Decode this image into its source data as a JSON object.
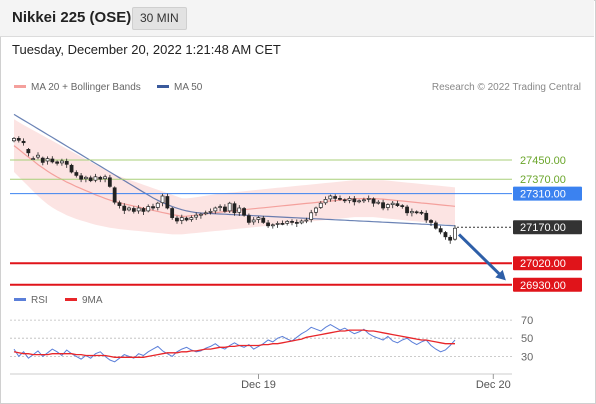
{
  "header": {
    "title": "Nikkei 225 (OSE)",
    "interval": "30 MIN"
  },
  "timestamp": "Tuesday, December 20, 2022 1:21:48 AM CET",
  "legend": {
    "items": [
      {
        "label": "MA 20 + Bollinger Bands",
        "color": "#f4a09c"
      },
      {
        "label": "MA 50",
        "color": "#3a5a9c"
      }
    ],
    "credit": "Research © 2022 Trading Central"
  },
  "rsi_legend": {
    "items": [
      {
        "label": "RSI",
        "color": "#5b7fd9"
      },
      {
        "label": "9MA",
        "color": "#e8262a"
      }
    ]
  },
  "chart_data": [
    {
      "type": "candlestick",
      "yrange": [
        26900,
        27700
      ],
      "x_ticks": [
        {
          "label": "Dec 19",
          "index": 51
        },
        {
          "label": "Dec 20",
          "index": 100
        }
      ],
      "price_levels": [
        {
          "value": 27450,
          "label": "27450.00",
          "color": "#a8cf78",
          "style": "line",
          "label_style": "text"
        },
        {
          "value": 27370,
          "label": "27370.00",
          "color": "#a8cf78",
          "style": "line",
          "label_style": "text"
        },
        {
          "value": 27310,
          "label": "27310.00",
          "color": "#3b82f0",
          "style": "line",
          "label_style": "box"
        },
        {
          "value": 27170,
          "label": "27170.00",
          "color": "#333333",
          "style": "dotted",
          "label_style": "box"
        },
        {
          "value": 27020,
          "label": "27020.00",
          "color": "#e0141a",
          "style": "thick",
          "label_style": "box"
        },
        {
          "value": 26930,
          "label": "26930.00",
          "color": "#e0141a",
          "style": "thick",
          "label_style": "box"
        }
      ],
      "close": [
        27540,
        27532,
        27522,
        27480,
        27456,
        27470,
        27440,
        27456,
        27442,
        27436,
        27446,
        27432,
        27400,
        27386,
        27370,
        27378,
        27364,
        27380,
        27370,
        27380,
        27340,
        27274,
        27260,
        27240,
        27250,
        27236,
        27250,
        27236,
        27256,
        27250,
        27270,
        27300,
        27250,
        27210,
        27196,
        27210,
        27200,
        27210,
        27220,
        27224,
        27230,
        27236,
        27250,
        27256,
        27236,
        27270,
        27230,
        27250,
        27220,
        27190,
        27200,
        27210,
        27190,
        27176,
        27180,
        27186,
        27184,
        27194,
        27190,
        27186,
        27196,
        27200,
        27230,
        27250,
        27270,
        27286,
        27300,
        27290,
        27286,
        27280,
        27290,
        27276,
        27280,
        27284,
        27290,
        27270,
        27274,
        27250,
        27264,
        27270,
        27260,
        27256,
        27230,
        27236,
        27230,
        27230,
        27200,
        27190,
        27166,
        27150,
        27130,
        27116,
        27166
      ],
      "open_offset": [
        -10,
        8,
        6,
        14,
        0,
        -8,
        18,
        -10,
        12,
        6,
        -8,
        12,
        28,
        12,
        14,
        -6,
        12,
        -14,
        8,
        -8,
        36,
        60,
        12,
        18,
        -8,
        12,
        -12,
        12,
        -18,
        6,
        -18,
        -28,
        48,
        38,
        12,
        -12,
        8,
        -8,
        -8,
        -4,
        -4,
        -4,
        -12,
        -4,
        18,
        -32,
        38,
        -18,
        28,
        28,
        -8,
        -8,
        18,
        12,
        -4,
        -4,
        2,
        -8,
        4,
        4,
        -8,
        -4,
        -28,
        -18,
        -18,
        -14,
        -12,
        8,
        4,
        4,
        -8,
        12,
        -4,
        -4,
        -4,
        18,
        -4,
        22,
        -12,
        -6,
        8,
        4,
        24,
        -6,
        4,
        2,
        28,
        8,
        22,
        14,
        18,
        12,
        -46
      ],
      "ma20_top": [
        27620,
        27608,
        27596,
        27585,
        27574,
        27563,
        27552,
        27541,
        27530,
        27519,
        27508,
        27497,
        27486,
        27475,
        27464,
        27453,
        27442,
        27431,
        27420,
        27409,
        27398,
        27389,
        27382,
        27375,
        27368,
        27361,
        27354,
        27347,
        27340,
        27333,
        27326,
        27319,
        27312,
        27305,
        27298,
        27291,
        27290,
        27292,
        27295,
        27298,
        27301,
        27304,
        27307,
        27310,
        27312,
        27314,
        27316,
        27318,
        27320,
        27322,
        27324,
        27326,
        27328,
        27330,
        27332,
        27334,
        27336,
        27338,
        27340,
        27342,
        27344,
        27346,
        27348,
        27350,
        27352,
        27354,
        27356,
        27358,
        27360,
        27362,
        27364,
        27366,
        27366,
        27366,
        27366,
        27366,
        27366,
        27366,
        27364,
        27362,
        27360,
        27358,
        27356,
        27354,
        27352,
        27350,
        27348,
        27346,
        27344,
        27342,
        27340,
        27338,
        27336
      ],
      "ma20_bottom": [
        27400,
        27380,
        27360,
        27340,
        27320,
        27300,
        27282,
        27266,
        27252,
        27240,
        27230,
        27220,
        27212,
        27204,
        27198,
        27192,
        27186,
        27180,
        27176,
        27172,
        27168,
        27165,
        27162,
        27160,
        27158,
        27156,
        27154,
        27152,
        27150,
        27148,
        27146,
        27144,
        27142,
        27140,
        27140,
        27140,
        27142,
        27144,
        27146,
        27148,
        27150,
        27152,
        27154,
        27156,
        27158,
        27160,
        27162,
        27164,
        27166,
        27168,
        27170,
        27172,
        27174,
        27176,
        27178,
        27180,
        27182,
        27184,
        27186,
        27188,
        27190,
        27192,
        27194,
        27196,
        27198,
        27200,
        27202,
        27204,
        27206,
        27208,
        27210,
        27212,
        27212,
        27212,
        27212,
        27212,
        27210,
        27208,
        27206,
        27204,
        27202,
        27200,
        27198,
        27196,
        27194,
        27192,
        27190,
        27188,
        27186,
        27184,
        27182,
        27180,
        27178
      ],
      "ma20": [
        27510,
        27494,
        27478,
        27462,
        27447,
        27431,
        27417,
        27403,
        27391,
        27379,
        27369,
        27358,
        27349,
        27339,
        27331,
        27322,
        27314,
        27305,
        27298,
        27290,
        27283,
        27277,
        27272,
        27267,
        27263,
        27258,
        27254,
        27249,
        27245,
        27240,
        27236,
        27231,
        27227,
        27222,
        27219,
        27215,
        27216,
        27218,
        27220,
        27223,
        27226,
        27228,
        27230,
        27233,
        27235,
        27237,
        27239,
        27241,
        27243,
        27245,
        27247,
        27249,
        27251,
        27253,
        27255,
        27257,
        27259,
        27261,
        27263,
        27265,
        27267,
        27269,
        27271,
        27273,
        27275,
        27277,
        27279,
        27281,
        27283,
        27285,
        27287,
        27289,
        27289,
        27289,
        27289,
        27289,
        27288,
        27287,
        27285,
        27283,
        27281,
        27279,
        27277,
        27275,
        27273,
        27271,
        27269,
        27267,
        27265,
        27263,
        27261,
        27259,
        27257
      ],
      "ma50": [
        27640,
        27628,
        27616,
        27604,
        27592,
        27580,
        27568,
        27556,
        27544,
        27532,
        27520,
        27508,
        27496,
        27484,
        27472,
        27460,
        27448,
        27436,
        27424,
        27412,
        27400,
        27388,
        27376,
        27364,
        27352,
        27340,
        27328,
        27316,
        27304,
        27292,
        27282,
        27272,
        27264,
        27256,
        27249,
        27243,
        27238,
        27234,
        27231,
        27229,
        27228,
        27227,
        27226,
        27225,
        27224,
        27223,
        27222,
        27221,
        27220,
        27219,
        27218,
        27217,
        27216,
        27215,
        27214,
        27213,
        27212,
        27211,
        27210,
        27209,
        27208,
        27207,
        27206,
        27205,
        27204,
        27203,
        27202,
        27201,
        27200,
        27199,
        27198,
        27197,
        27196,
        27195,
        27194,
        27193,
        27192,
        27191,
        27190,
        27189,
        27188,
        27187,
        27186,
        27185,
        27184,
        27183,
        27182,
        27181,
        27180,
        27179,
        27178,
        27177,
        27176
      ],
      "forecast_arrow": {
        "from": 27140,
        "to": 26960
      }
    },
    {
      "type": "line",
      "title": "RSI",
      "ylim": [
        15,
        80
      ],
      "y_ticks": [
        70,
        50,
        30
      ],
      "series": [
        {
          "name": "RSI",
          "color": "#5b7fd9",
          "values": [
            38,
            30,
            35,
            28,
            32,
            36,
            30,
            34,
            38,
            35,
            31,
            37,
            33,
            30,
            27,
            31,
            28,
            33,
            35,
            30,
            26,
            24,
            28,
            32,
            30,
            28,
            33,
            31,
            35,
            38,
            41,
            36,
            33,
            30,
            35,
            38,
            40,
            37,
            35,
            36,
            39,
            41,
            44,
            40,
            38,
            42,
            45,
            42,
            40,
            43,
            38,
            41,
            44,
            48,
            46,
            50,
            52,
            49,
            47,
            51,
            55,
            58,
            62,
            60,
            58,
            62,
            65,
            62,
            59,
            61,
            58,
            55,
            57,
            60,
            55,
            52,
            50,
            48,
            52,
            47,
            45,
            48,
            50,
            46,
            43,
            46,
            48,
            42,
            38,
            35,
            37,
            42,
            48
          ]
        },
        {
          "name": "9MA",
          "color": "#e8262a",
          "values": [
            35,
            34,
            33,
            33,
            32,
            32,
            32,
            32,
            33,
            33,
            33,
            33,
            33,
            32,
            32,
            31,
            31,
            31,
            31,
            31,
            30,
            29,
            29,
            29,
            29,
            29,
            29,
            29,
            30,
            31,
            32,
            33,
            34,
            34,
            34,
            35,
            35,
            36,
            36,
            37,
            38,
            38,
            39,
            40,
            40,
            41,
            41,
            42,
            42,
            42,
            42,
            42,
            43,
            43,
            44,
            44,
            45,
            46,
            47,
            48,
            49,
            51,
            52,
            53,
            54,
            55,
            56,
            57,
            58,
            58,
            59,
            59,
            59,
            59,
            58,
            58,
            57,
            56,
            55,
            54,
            53,
            52,
            51,
            50,
            49,
            48,
            48,
            47,
            46,
            45,
            44,
            44,
            44
          ]
        }
      ]
    }
  ]
}
